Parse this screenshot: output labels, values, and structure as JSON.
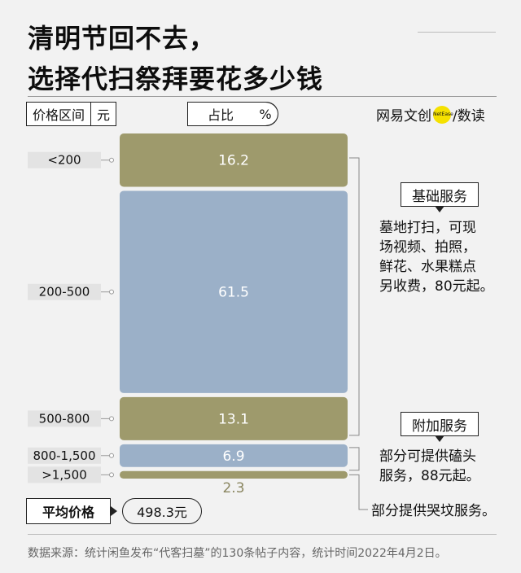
{
  "title_line1": "清明节回不去，",
  "title_line2": "选择代扫祭拜要花多少钱",
  "legend": {
    "range_label": "价格区间",
    "range_unit": "元",
    "share_label": "占比",
    "share_unit": "%"
  },
  "logo": {
    "part1": "网易文创",
    "dot_text": "NetEase",
    "part2": "/数读"
  },
  "chart_data": {
    "type": "bar",
    "categories": [
      "<200",
      "200-500",
      "500-800",
      "800-1,500",
      ">1,500"
    ],
    "values": [
      16.2,
      61.5,
      13.1,
      6.9,
      2.3
    ],
    "value_labels": [
      "16.2",
      "61.5",
      "13.1",
      "6.9",
      "2.3"
    ],
    "unit": "%",
    "colors": [
      "#9e9a6c",
      "#9bb0c8",
      "#9e9a6c",
      "#9bb0c8",
      "#9e9a6c"
    ],
    "label_color_light": "#ffffff",
    "label_color_dark": "#8a8660"
  },
  "callouts": {
    "basic": {
      "label": "基础服务",
      "lines": [
        "墓地打扫，可现",
        "场视频、拍照，",
        "鲜花、水果糕点",
        "另收费，80元起。"
      ]
    },
    "extra": {
      "label": "附加服务",
      "lines": [
        "部分可提供磕头",
        "服务，88元起。"
      ]
    },
    "crying": {
      "lines": [
        "部分提供哭坟服务。"
      ]
    }
  },
  "average": {
    "label": "平均价格",
    "value": "498.3元"
  },
  "source": "数据来源：统计闲鱼发布“代客扫墓”的130条帖子内容，统计时间2022年4月2日。"
}
